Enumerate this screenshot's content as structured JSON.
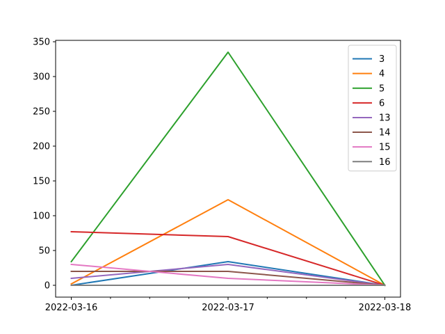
{
  "chart_data": {
    "type": "line",
    "title": "",
    "xlabel": "",
    "ylabel": "",
    "x": [
      "2022-03-16",
      "2022-03-17",
      "2022-03-18"
    ],
    "xlim": [
      "2022-03-15T21:36",
      "2022-03-18T02:24"
    ],
    "ylim": [
      -17,
      352
    ],
    "yticks": [
      0,
      50,
      100,
      150,
      200,
      250,
      300,
      350
    ],
    "xticks_labeled": [
      "2022-03-16",
      "2022-03-17",
      "2022-03-18"
    ],
    "xticks_minor": [
      "2022-03-16T06:00",
      "2022-03-16T12:00",
      "2022-03-16T18:00",
      "2022-03-17T06:00",
      "2022-03-17T12:00",
      "2022-03-17T18:00"
    ],
    "grid": false,
    "legend_position": "top-right",
    "series": [
      {
        "name": "3",
        "values": [
          0,
          34,
          0
        ],
        "color": "#1f77b4"
      },
      {
        "name": "4",
        "values": [
          2,
          123,
          0
        ],
        "color": "#ff7f0e"
      },
      {
        "name": "5",
        "values": [
          34,
          335,
          0
        ],
        "color": "#2ca02c"
      },
      {
        "name": "6",
        "values": [
          77,
          70,
          0
        ],
        "color": "#d62728"
      },
      {
        "name": "13",
        "values": [
          10,
          30,
          0
        ],
        "color": "#9467bd"
      },
      {
        "name": "14",
        "values": [
          20,
          20,
          0
        ],
        "color": "#8c564b"
      },
      {
        "name": "15",
        "values": [
          30,
          10,
          0
        ],
        "color": "#e377c2"
      },
      {
        "name": "16",
        "values": [
          0,
          0,
          0
        ],
        "color": "#7f7f7f"
      }
    ]
  }
}
